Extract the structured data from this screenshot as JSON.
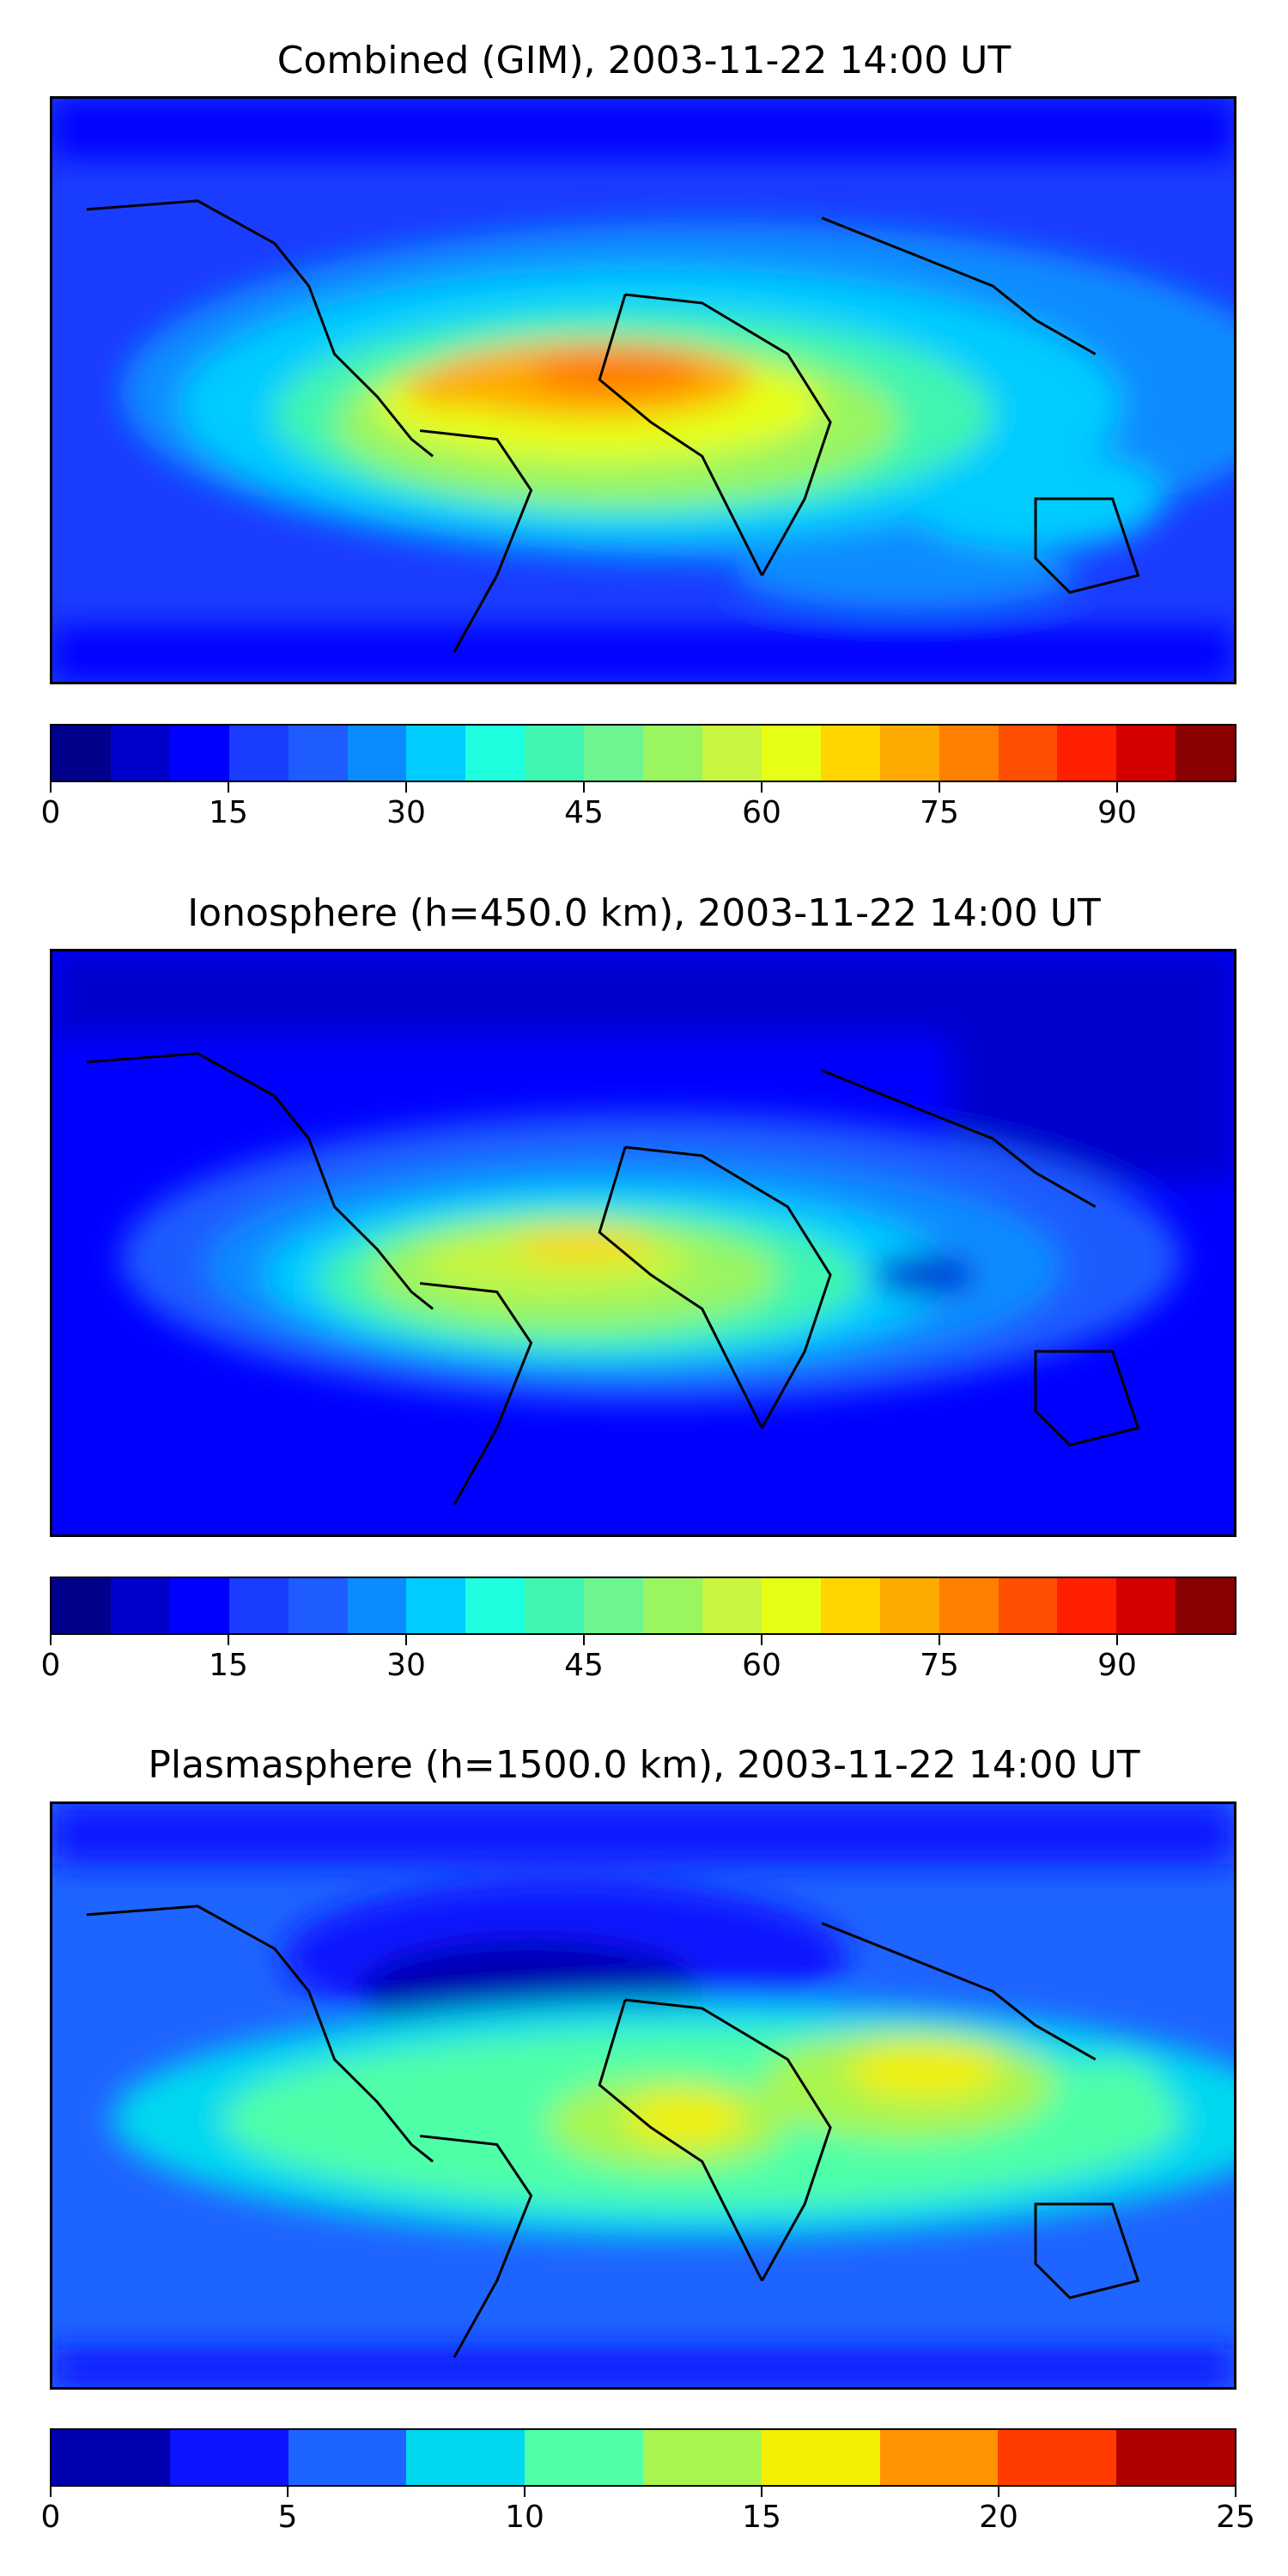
{
  "panels": [
    {
      "title": "Combined (GIM), 2003-11-22 14:00 UT",
      "colorbar": {
        "min": 0,
        "max": 100,
        "tick_labels": [
          "0",
          "15",
          "30",
          "45",
          "60",
          "75",
          "90"
        ],
        "tick_values": [
          0,
          15,
          30,
          45,
          60,
          75,
          90
        ],
        "colors": [
          "#00008b",
          "#0000cd",
          "#0000ff",
          "#1a3cff",
          "#1e5cff",
          "#0a8cff",
          "#00ccff",
          "#1effe0",
          "#40f5b0",
          "#6cf590",
          "#9af560",
          "#c8f540",
          "#e6ff14",
          "#ffd500",
          "#ffaa00",
          "#ff7f00",
          "#ff4f00",
          "#ff2000",
          "#d40000",
          "#8b0000"
        ]
      }
    },
    {
      "title": "Ionosphere  (h=450.0 km), 2003-11-22 14:00 UT",
      "colorbar": {
        "min": 0,
        "max": 100,
        "tick_labels": [
          "0",
          "15",
          "30",
          "45",
          "60",
          "75",
          "90"
        ],
        "tick_values": [
          0,
          15,
          30,
          45,
          60,
          75,
          90
        ],
        "colors": [
          "#00008b",
          "#0000cd",
          "#0000ff",
          "#1a3cff",
          "#1e5cff",
          "#0a8cff",
          "#00ccff",
          "#1effe0",
          "#40f5b0",
          "#6cf590",
          "#9af560",
          "#c8f540",
          "#e6ff14",
          "#ffd500",
          "#ffaa00",
          "#ff7f00",
          "#ff4f00",
          "#ff2000",
          "#d40000",
          "#8b0000"
        ]
      }
    },
    {
      "title": "Plasmasphere (h=1500.0 km), 2003-11-22 14:00 UT",
      "colorbar": {
        "min": 0,
        "max": 25,
        "tick_labels": [
          "0",
          "5",
          "10",
          "15",
          "20",
          "25"
        ],
        "tick_values": [
          0,
          5,
          10,
          15,
          20,
          25
        ],
        "colors": [
          "#0000b0",
          "#0a14ff",
          "#1e64ff",
          "#00d8f0",
          "#50ffa8",
          "#a8f550",
          "#f2f000",
          "#ff9400",
          "#ff3c00",
          "#b00000"
        ]
      }
    }
  ]
}
